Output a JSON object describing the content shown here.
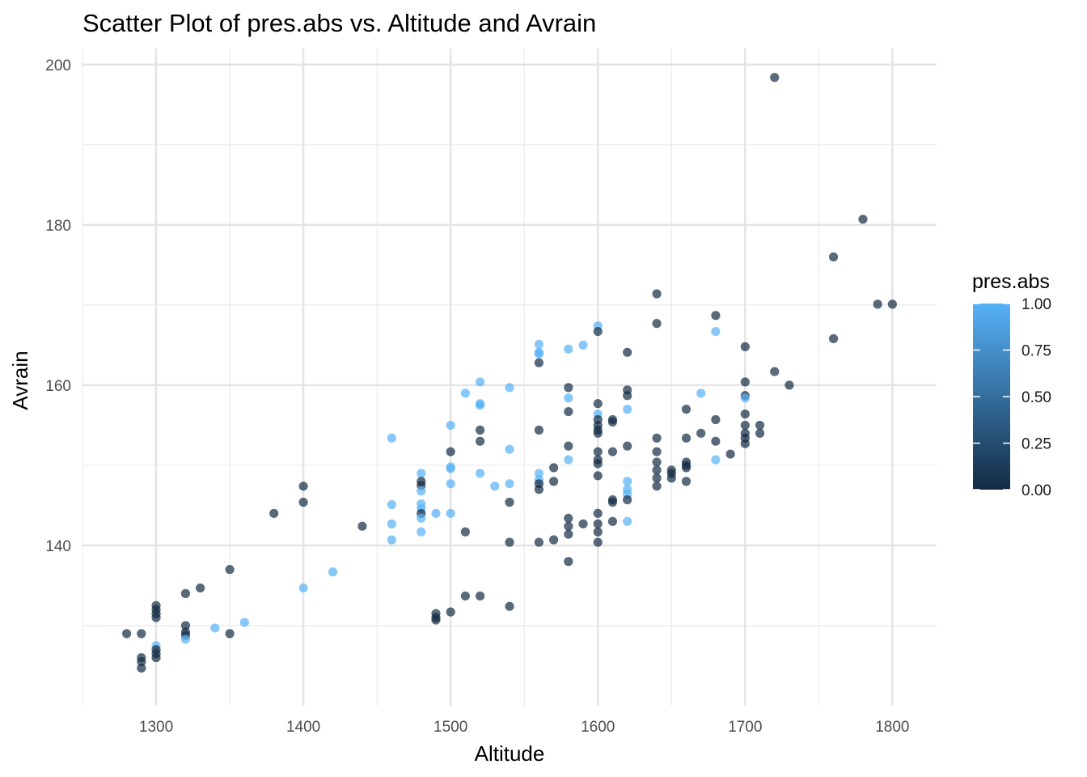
{
  "chart_data": {
    "type": "scatter",
    "title": "Scatter Plot of pres.abs vs. Altitude and Avrain",
    "xlabel": "Altitude",
    "ylabel": "Avrain",
    "xlim": [
      1250,
      1830
    ],
    "ylim": [
      120,
      202
    ],
    "x_ticks": [
      1300,
      1400,
      1500,
      1600,
      1700,
      1800
    ],
    "y_ticks": [
      140,
      160,
      180,
      200
    ],
    "grid": true,
    "legend": {
      "title": "pres.abs",
      "placement": "right",
      "type": "colorbar",
      "ticks": [
        "1.00",
        "0.75",
        "0.50",
        "0.25",
        "0.00"
      ],
      "low_color": "#132B43",
      "high_color": "#56B1F7"
    },
    "point_opacity": 0.7,
    "points": [
      {
        "x": 1280,
        "y": 129,
        "c": 0
      },
      {
        "x": 1290,
        "y": 129,
        "c": 0
      },
      {
        "x": 1290,
        "y": 126,
        "c": 0
      },
      {
        "x": 1290,
        "y": 125.5,
        "c": 0
      },
      {
        "x": 1290,
        "y": 124.7,
        "c": 0
      },
      {
        "x": 1300,
        "y": 132.5,
        "c": 0
      },
      {
        "x": 1300,
        "y": 132,
        "c": 0
      },
      {
        "x": 1300,
        "y": 131.5,
        "c": 0
      },
      {
        "x": 1300,
        "y": 131,
        "c": 0
      },
      {
        "x": 1300,
        "y": 127.5,
        "c": 1
      },
      {
        "x": 1300,
        "y": 127,
        "c": 0
      },
      {
        "x": 1300,
        "y": 126.5,
        "c": 0
      },
      {
        "x": 1300,
        "y": 126,
        "c": 0
      },
      {
        "x": 1320,
        "y": 134,
        "c": 0
      },
      {
        "x": 1320,
        "y": 130,
        "c": 0
      },
      {
        "x": 1320,
        "y": 129.2,
        "c": 0
      },
      {
        "x": 1320,
        "y": 128.8,
        "c": 0
      },
      {
        "x": 1320,
        "y": 128.3,
        "c": 1
      },
      {
        "x": 1330,
        "y": 134.7,
        "c": 0
      },
      {
        "x": 1340,
        "y": 129.7,
        "c": 1
      },
      {
        "x": 1350,
        "y": 137,
        "c": 0
      },
      {
        "x": 1350,
        "y": 129,
        "c": 0
      },
      {
        "x": 1360,
        "y": 130.4,
        "c": 1
      },
      {
        "x": 1380,
        "y": 144,
        "c": 0
      },
      {
        "x": 1400,
        "y": 147.4,
        "c": 0
      },
      {
        "x": 1400,
        "y": 145.4,
        "c": 0
      },
      {
        "x": 1400,
        "y": 134.7,
        "c": 1
      },
      {
        "x": 1420,
        "y": 136.7,
        "c": 1
      },
      {
        "x": 1440,
        "y": 142.4,
        "c": 0
      },
      {
        "x": 1460,
        "y": 153.4,
        "c": 1
      },
      {
        "x": 1460,
        "y": 145.1,
        "c": 1
      },
      {
        "x": 1460,
        "y": 142.7,
        "c": 1
      },
      {
        "x": 1460,
        "y": 140.7,
        "c": 1
      },
      {
        "x": 1480,
        "y": 149,
        "c": 1
      },
      {
        "x": 1480,
        "y": 148,
        "c": 0
      },
      {
        "x": 1480,
        "y": 147.5,
        "c": 0
      },
      {
        "x": 1480,
        "y": 146.8,
        "c": 1
      },
      {
        "x": 1480,
        "y": 145.2,
        "c": 1
      },
      {
        "x": 1480,
        "y": 144.6,
        "c": 1
      },
      {
        "x": 1480,
        "y": 144,
        "c": 0
      },
      {
        "x": 1480,
        "y": 143.4,
        "c": 1
      },
      {
        "x": 1480,
        "y": 141.7,
        "c": 1
      },
      {
        "x": 1490,
        "y": 144,
        "c": 1
      },
      {
        "x": 1490,
        "y": 131.5,
        "c": 0
      },
      {
        "x": 1490,
        "y": 131,
        "c": 0
      },
      {
        "x": 1490,
        "y": 130.7,
        "c": 0
      },
      {
        "x": 1500,
        "y": 155,
        "c": 1
      },
      {
        "x": 1500,
        "y": 151.7,
        "c": 0
      },
      {
        "x": 1500,
        "y": 149.8,
        "c": 1
      },
      {
        "x": 1500,
        "y": 149.6,
        "c": 1
      },
      {
        "x": 1500,
        "y": 147.7,
        "c": 1
      },
      {
        "x": 1500,
        "y": 144,
        "c": 1
      },
      {
        "x": 1500,
        "y": 131.7,
        "c": 0
      },
      {
        "x": 1510,
        "y": 159,
        "c": 1
      },
      {
        "x": 1510,
        "y": 141.7,
        "c": 0
      },
      {
        "x": 1510,
        "y": 133.7,
        "c": 0
      },
      {
        "x": 1520,
        "y": 160.4,
        "c": 1
      },
      {
        "x": 1520,
        "y": 157.7,
        "c": 1
      },
      {
        "x": 1520,
        "y": 157.5,
        "c": 1
      },
      {
        "x": 1520,
        "y": 154.4,
        "c": 0
      },
      {
        "x": 1520,
        "y": 153,
        "c": 0
      },
      {
        "x": 1520,
        "y": 149,
        "c": 1
      },
      {
        "x": 1520,
        "y": 133.7,
        "c": 0
      },
      {
        "x": 1530,
        "y": 147.4,
        "c": 1
      },
      {
        "x": 1540,
        "y": 159.7,
        "c": 1
      },
      {
        "x": 1540,
        "y": 152,
        "c": 1
      },
      {
        "x": 1540,
        "y": 147.7,
        "c": 1
      },
      {
        "x": 1540,
        "y": 145.4,
        "c": 0
      },
      {
        "x": 1540,
        "y": 140.4,
        "c": 0
      },
      {
        "x": 1540,
        "y": 132.4,
        "c": 0
      },
      {
        "x": 1560,
        "y": 165.1,
        "c": 1
      },
      {
        "x": 1560,
        "y": 164.1,
        "c": 1
      },
      {
        "x": 1560,
        "y": 163.9,
        "c": 1
      },
      {
        "x": 1560,
        "y": 162.8,
        "c": 0
      },
      {
        "x": 1560,
        "y": 154.4,
        "c": 0
      },
      {
        "x": 1560,
        "y": 149,
        "c": 1
      },
      {
        "x": 1560,
        "y": 148.2,
        "c": 1
      },
      {
        "x": 1560,
        "y": 147.7,
        "c": 0
      },
      {
        "x": 1560,
        "y": 147,
        "c": 0
      },
      {
        "x": 1560,
        "y": 140.4,
        "c": 0
      },
      {
        "x": 1570,
        "y": 149.7,
        "c": 0
      },
      {
        "x": 1570,
        "y": 148,
        "c": 0
      },
      {
        "x": 1570,
        "y": 140.7,
        "c": 0
      },
      {
        "x": 1580,
        "y": 164.5,
        "c": 1
      },
      {
        "x": 1580,
        "y": 159.7,
        "c": 0
      },
      {
        "x": 1580,
        "y": 158.4,
        "c": 1
      },
      {
        "x": 1580,
        "y": 156.7,
        "c": 0
      },
      {
        "x": 1580,
        "y": 152.4,
        "c": 0
      },
      {
        "x": 1580,
        "y": 150.7,
        "c": 1
      },
      {
        "x": 1580,
        "y": 143.4,
        "c": 0
      },
      {
        "x": 1580,
        "y": 142.4,
        "c": 0
      },
      {
        "x": 1580,
        "y": 141.4,
        "c": 0
      },
      {
        "x": 1580,
        "y": 138,
        "c": 0
      },
      {
        "x": 1590,
        "y": 165,
        "c": 1
      },
      {
        "x": 1590,
        "y": 142.7,
        "c": 0
      },
      {
        "x": 1600,
        "y": 167.4,
        "c": 1
      },
      {
        "x": 1600,
        "y": 166.7,
        "c": 0
      },
      {
        "x": 1600,
        "y": 157.7,
        "c": 0
      },
      {
        "x": 1600,
        "y": 156.4,
        "c": 1
      },
      {
        "x": 1600,
        "y": 155.7,
        "c": 0
      },
      {
        "x": 1600,
        "y": 155,
        "c": 0
      },
      {
        "x": 1600,
        "y": 154.4,
        "c": 0
      },
      {
        "x": 1600,
        "y": 154,
        "c": 0
      },
      {
        "x": 1600,
        "y": 151.7,
        "c": 0
      },
      {
        "x": 1600,
        "y": 150.7,
        "c": 0
      },
      {
        "x": 1600,
        "y": 150.2,
        "c": 0
      },
      {
        "x": 1600,
        "y": 148.7,
        "c": 0
      },
      {
        "x": 1600,
        "y": 144,
        "c": 0
      },
      {
        "x": 1600,
        "y": 142.7,
        "c": 0
      },
      {
        "x": 1600,
        "y": 141.7,
        "c": 0
      },
      {
        "x": 1600,
        "y": 140.4,
        "c": 0
      },
      {
        "x": 1610,
        "y": 155.7,
        "c": 0
      },
      {
        "x": 1610,
        "y": 155.4,
        "c": 0
      },
      {
        "x": 1610,
        "y": 151.7,
        "c": 0
      },
      {
        "x": 1610,
        "y": 145.7,
        "c": 0
      },
      {
        "x": 1610,
        "y": 145.4,
        "c": 0
      },
      {
        "x": 1610,
        "y": 143,
        "c": 0
      },
      {
        "x": 1620,
        "y": 164.1,
        "c": 0
      },
      {
        "x": 1620,
        "y": 159.4,
        "c": 0
      },
      {
        "x": 1620,
        "y": 158.7,
        "c": 0
      },
      {
        "x": 1620,
        "y": 157,
        "c": 1
      },
      {
        "x": 1620,
        "y": 152.4,
        "c": 0
      },
      {
        "x": 1620,
        "y": 148,
        "c": 1
      },
      {
        "x": 1620,
        "y": 147,
        "c": 1
      },
      {
        "x": 1620,
        "y": 146.4,
        "c": 1
      },
      {
        "x": 1620,
        "y": 145.7,
        "c": 0
      },
      {
        "x": 1620,
        "y": 143,
        "c": 1
      },
      {
        "x": 1640,
        "y": 171.4,
        "c": 0
      },
      {
        "x": 1640,
        "y": 167.7,
        "c": 0
      },
      {
        "x": 1640,
        "y": 153.4,
        "c": 0
      },
      {
        "x": 1640,
        "y": 151.7,
        "c": 0
      },
      {
        "x": 1640,
        "y": 150.4,
        "c": 0
      },
      {
        "x": 1640,
        "y": 149.4,
        "c": 0
      },
      {
        "x": 1640,
        "y": 148.4,
        "c": 0
      },
      {
        "x": 1640,
        "y": 147.4,
        "c": 0
      },
      {
        "x": 1650,
        "y": 149.4,
        "c": 0
      },
      {
        "x": 1650,
        "y": 149,
        "c": 0
      },
      {
        "x": 1650,
        "y": 148.4,
        "c": 0
      },
      {
        "x": 1660,
        "y": 157,
        "c": 0
      },
      {
        "x": 1660,
        "y": 153.4,
        "c": 0
      },
      {
        "x": 1660,
        "y": 150.4,
        "c": 0
      },
      {
        "x": 1660,
        "y": 150,
        "c": 0
      },
      {
        "x": 1660,
        "y": 149.7,
        "c": 0
      },
      {
        "x": 1660,
        "y": 148,
        "c": 0
      },
      {
        "x": 1670,
        "y": 159,
        "c": 1
      },
      {
        "x": 1670,
        "y": 154,
        "c": 0
      },
      {
        "x": 1680,
        "y": 168.7,
        "c": 0
      },
      {
        "x": 1680,
        "y": 166.7,
        "c": 1
      },
      {
        "x": 1680,
        "y": 155.7,
        "c": 0
      },
      {
        "x": 1680,
        "y": 153,
        "c": 0
      },
      {
        "x": 1680,
        "y": 150.7,
        "c": 1
      },
      {
        "x": 1690,
        "y": 151.4,
        "c": 0
      },
      {
        "x": 1700,
        "y": 164.8,
        "c": 0
      },
      {
        "x": 1700,
        "y": 160.4,
        "c": 0
      },
      {
        "x": 1700,
        "y": 158.7,
        "c": 0
      },
      {
        "x": 1700,
        "y": 158.4,
        "c": 1
      },
      {
        "x": 1700,
        "y": 156.4,
        "c": 0
      },
      {
        "x": 1700,
        "y": 155,
        "c": 0
      },
      {
        "x": 1700,
        "y": 154,
        "c": 0
      },
      {
        "x": 1700,
        "y": 153.4,
        "c": 0
      },
      {
        "x": 1700,
        "y": 152.7,
        "c": 0
      },
      {
        "x": 1710,
        "y": 155,
        "c": 0
      },
      {
        "x": 1710,
        "y": 154,
        "c": 0
      },
      {
        "x": 1720,
        "y": 198.4,
        "c": 0
      },
      {
        "x": 1720,
        "y": 161.7,
        "c": 0
      },
      {
        "x": 1730,
        "y": 160,
        "c": 0
      },
      {
        "x": 1760,
        "y": 176,
        "c": 0
      },
      {
        "x": 1760,
        "y": 165.8,
        "c": 0
      },
      {
        "x": 1780,
        "y": 180.7,
        "c": 0
      },
      {
        "x": 1790,
        "y": 170.1,
        "c": 0
      },
      {
        "x": 1800,
        "y": 170.1,
        "c": 0
      }
    ]
  }
}
